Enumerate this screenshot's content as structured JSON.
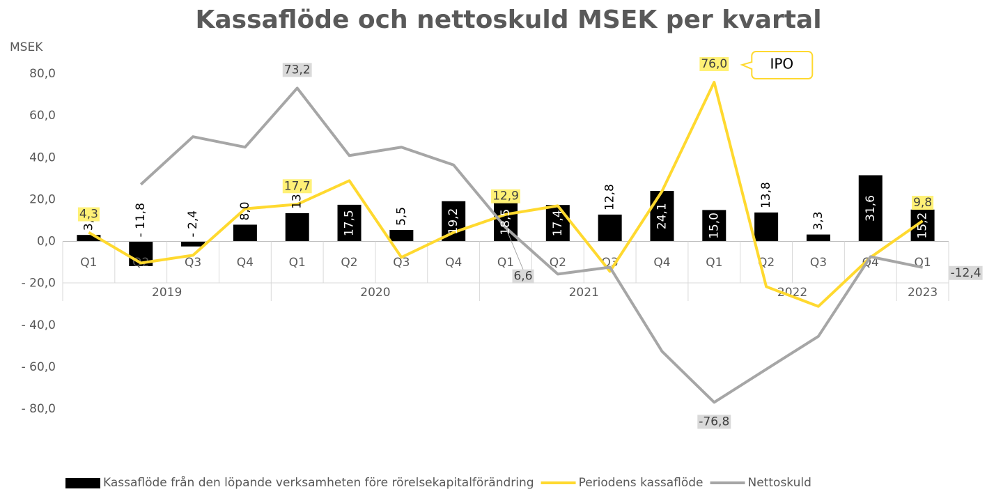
{
  "chart_data": {
    "type": "bar_line",
    "title": "Kassaflöde och nettoskuld MSEK per kvartal",
    "y_axis_label": "MSEK",
    "category_groups": [
      {
        "name": "2019",
        "categories": [
          "Q1",
          "Q2",
          "Q3",
          "Q4"
        ]
      },
      {
        "name": "2020",
        "categories": [
          "Q1",
          "Q2",
          "Q3",
          "Q4"
        ]
      },
      {
        "name": "2021",
        "categories": [
          "Q1",
          "Q2",
          "Q3",
          "Q4"
        ]
      },
      {
        "name": "2022",
        "categories": [
          "Q1",
          "Q2",
          "Q3",
          "Q4"
        ]
      },
      {
        "name": "2023",
        "categories": [
          "Q1"
        ]
      }
    ],
    "series": [
      {
        "name": "Kassaflöde från den löpande verksamheten före rörelsekapitalförändring",
        "type": "bar",
        "color": "#000000",
        "values": [
          3.1,
          -11.8,
          -2.4,
          8.0,
          13.5,
          17.5,
          5.5,
          19.2,
          18.5,
          17.4,
          12.8,
          24.1,
          15.0,
          13.8,
          3.3,
          31.6,
          15.2
        ],
        "value_labels": [
          "3,1",
          "- 11,8",
          "- 2,4",
          "8,0",
          "13,5",
          "17,5",
          "5,5",
          "19,2",
          "18,5",
          "17,4",
          "12,8",
          "24,1",
          "15,0",
          "13,8",
          "3,3",
          "31,6",
          "15,2"
        ]
      },
      {
        "name": "Periodens kassaflöde",
        "type": "line",
        "color": "#ffd92f",
        "values": [
          4.3,
          -10.3,
          -6.6,
          15.6,
          17.7,
          29.0,
          -7.6,
          4.3,
          12.9,
          17.0,
          -14.3,
          24.0,
          76.0,
          -21.6,
          -31.0,
          -7.6,
          9.8
        ],
        "value_labels": [
          "4,3",
          null,
          null,
          null,
          "17,7",
          null,
          null,
          null,
          "12,9",
          null,
          null,
          null,
          "76,0",
          null,
          null,
          null,
          "9,8"
        ]
      },
      {
        "name": "Nettoskuld",
        "type": "line",
        "color": "#a6a6a6",
        "values": [
          null,
          27.2,
          50.0,
          45.0,
          73.2,
          41.0,
          45.0,
          36.5,
          6.6,
          -15.6,
          -12.3,
          -52.5,
          -76.8,
          -61.0,
          -45.3,
          -7.3,
          -12.4
        ],
        "value_labels": [
          null,
          null,
          null,
          null,
          "73,2",
          null,
          null,
          null,
          "6,6",
          null,
          null,
          null,
          "-76,8",
          null,
          null,
          null,
          "-12,4"
        ]
      }
    ],
    "annotations": [
      {
        "text": "IPO",
        "series": 1,
        "index": 12
      }
    ],
    "ylim": [
      -80,
      80
    ],
    "yticks": [
      {
        "value": 80,
        "label": "80,0"
      },
      {
        "value": 60,
        "label": "60,0"
      },
      {
        "value": 40,
        "label": "40,0"
      },
      {
        "value": 20,
        "label": "20,0"
      },
      {
        "value": 0,
        "label": "0,0"
      },
      {
        "value": -20,
        "label": "- 20,0"
      },
      {
        "value": -40,
        "label": "- 40,0"
      },
      {
        "value": -60,
        "label": "- 60,0"
      },
      {
        "value": -80,
        "label": "- 80,0"
      }
    ],
    "grid": false,
    "legend": "bottom"
  }
}
